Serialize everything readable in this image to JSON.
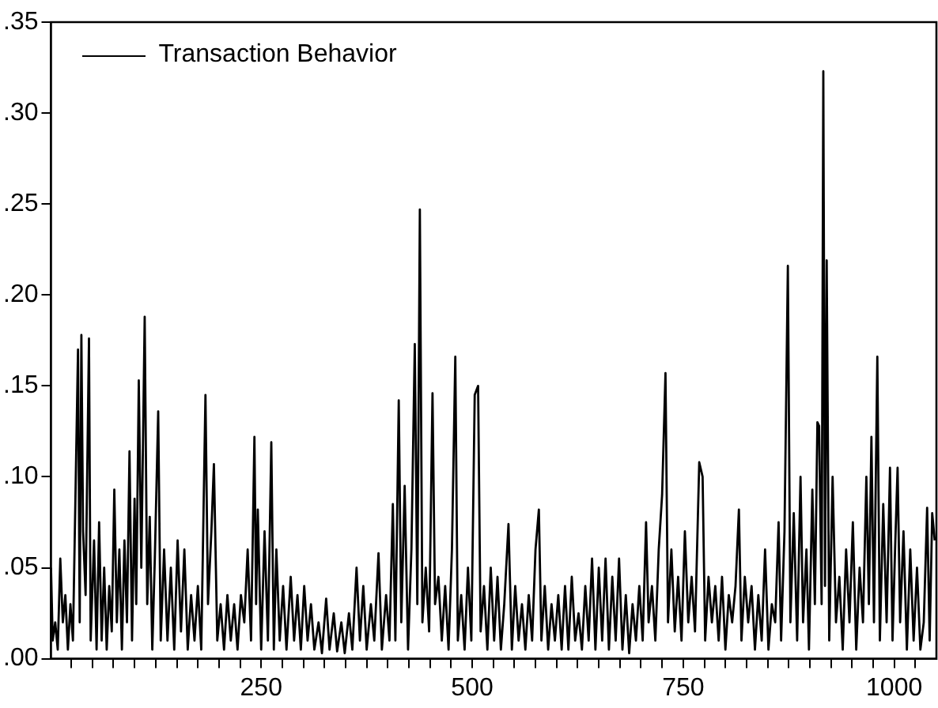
{
  "chart_data": {
    "type": "line",
    "legend": "top left",
    "grid": false,
    "marker": "none",
    "line_style": "solid",
    "xlim": [
      1,
      1050
    ],
    "ylim": [
      0,
      0.35
    ],
    "yticks": [
      {
        "value": 0,
        "label": ".00"
      },
      {
        "value": 0.05,
        "label": ".05"
      },
      {
        "value": 0.1,
        "label": ".10"
      },
      {
        "value": 0.15,
        "label": ".15"
      },
      {
        "value": 0.2,
        "label": ".20"
      },
      {
        "value": 0.25,
        "label": ".25"
      },
      {
        "value": 0.3,
        "label": ".30"
      },
      {
        "value": 0.35,
        "label": ".35"
      }
    ],
    "xticks": [
      {
        "value": 25,
        "label": null
      },
      {
        "value": 50,
        "label": null
      },
      {
        "value": 75,
        "label": null
      },
      {
        "value": 100,
        "label": null
      },
      {
        "value": 125,
        "label": null
      },
      {
        "value": 150,
        "label": null
      },
      {
        "value": 175,
        "label": null
      },
      {
        "value": 200,
        "label": null
      },
      {
        "value": 225,
        "label": null
      },
      250,
      {
        "value": 275,
        "label": null
      },
      {
        "value": 300,
        "label": null
      },
      {
        "value": 325,
        "label": null
      },
      {
        "value": 350,
        "label": null
      },
      {
        "value": 375,
        "label": null
      },
      {
        "value": 400,
        "label": null
      },
      {
        "value": 425,
        "label": null
      },
      {
        "value": 450,
        "label": null
      },
      {
        "value": 475,
        "label": null
      },
      500,
      {
        "value": 525,
        "label": null
      },
      {
        "value": 550,
        "label": null
      },
      {
        "value": 575,
        "label": null
      },
      {
        "value": 600,
        "label": null
      },
      {
        "value": 625,
        "label": null
      },
      {
        "value": 650,
        "label": null
      },
      {
        "value": 675,
        "label": null
      },
      {
        "value": 700,
        "label": null
      },
      {
        "value": 725,
        "label": null
      },
      750,
      {
        "value": 775,
        "label": null
      },
      {
        "value": 800,
        "label": null
      },
      {
        "value": 825,
        "label": null
      },
      {
        "value": 850,
        "label": null
      },
      {
        "value": 875,
        "label": null
      },
      {
        "value": 900,
        "label": null
      },
      {
        "value": 925,
        "label": null
      },
      {
        "value": 950,
        "label": null
      },
      {
        "value": 975,
        "label": null
      },
      1000,
      {
        "value": 1025,
        "label": null
      }
    ],
    "series": [
      {
        "name": "Transaction Behavior",
        "color": "#000000",
        "x": [
          1,
          3,
          6,
          9,
          12,
          15,
          18,
          21,
          24,
          27,
          30,
          33,
          35,
          37,
          39,
          42,
          46,
          48,
          52,
          55,
          58,
          61,
          64,
          67,
          70,
          73,
          76,
          79,
          82,
          85,
          88,
          91,
          94,
          97,
          100,
          102,
          105,
          108,
          112,
          115,
          118,
          121,
          124,
          128,
          131,
          135,
          139,
          143,
          147,
          151,
          155,
          159,
          163,
          167,
          171,
          175,
          179,
          184,
          187,
          191,
          194,
          198,
          202,
          206,
          210,
          214,
          218,
          222,
          226,
          230,
          234,
          238,
          242,
          244,
          246,
          250,
          254,
          258,
          262,
          265,
          268,
          272,
          276,
          280,
          285,
          289,
          293,
          297,
          301,
          305,
          309,
          313,
          318,
          322,
          327,
          331,
          336,
          340,
          345,
          349,
          354,
          358,
          363,
          367,
          371,
          375,
          380,
          384,
          389,
          393,
          398,
          402,
          406,
          409,
          413,
          416,
          420,
          424,
          428,
          432,
          435,
          438,
          441,
          445,
          449,
          453,
          456,
          460,
          464,
          468,
          472,
          476,
          480,
          483,
          487,
          491,
          495,
          499,
          503,
          507,
          510,
          514,
          518,
          522,
          526,
          530,
          534,
          538,
          543,
          547,
          551,
          555,
          559,
          563,
          567,
          571,
          575,
          579,
          582,
          586,
          590,
          594,
          598,
          602,
          606,
          610,
          614,
          618,
          622,
          626,
          630,
          634,
          638,
          642,
          646,
          650,
          654,
          658,
          662,
          666,
          670,
          674,
          678,
          682,
          686,
          690,
          694,
          698,
          702,
          706,
          709,
          713,
          717,
          721,
          725,
          729,
          732,
          736,
          740,
          744,
          748,
          752,
          756,
          760,
          764,
          769,
          773,
          776,
          780,
          784,
          788,
          792,
          796,
          800,
          804,
          808,
          812,
          816,
          819,
          823,
          827,
          831,
          835,
          839,
          843,
          847,
          851,
          855,
          859,
          863,
          866,
          870,
          874,
          877,
          881,
          885,
          889,
          892,
          896,
          899,
          903,
          906,
          909,
          911,
          914,
          916,
          918,
          920,
          923,
          927,
          931,
          935,
          939,
          943,
          947,
          951,
          955,
          959,
          963,
          967,
          970,
          973,
          976,
          980,
          983,
          987,
          991,
          995,
          998,
          1001,
          1004,
          1007,
          1011,
          1015,
          1019,
          1023,
          1027,
          1031,
          1035,
          1039,
          1042,
          1045,
          1048
        ],
        "values": [
          0.05,
          0.01,
          0.02,
          0.005,
          0.055,
          0.02,
          0.035,
          0.005,
          0.03,
          0.01,
          0.09,
          0.17,
          0.02,
          0.178,
          0.07,
          0.035,
          0.176,
          0.01,
          0.065,
          0.005,
          0.075,
          0.01,
          0.05,
          0.005,
          0.04,
          0.015,
          0.093,
          0.02,
          0.06,
          0.005,
          0.065,
          0.02,
          0.114,
          0.01,
          0.088,
          0.03,
          0.153,
          0.05,
          0.188,
          0.03,
          0.078,
          0.005,
          0.055,
          0.136,
          0.01,
          0.06,
          0.01,
          0.05,
          0.005,
          0.065,
          0.015,
          0.06,
          0.005,
          0.035,
          0.01,
          0.04,
          0.005,
          0.145,
          0.03,
          0.07,
          0.107,
          0.01,
          0.03,
          0.005,
          0.035,
          0.01,
          0.03,
          0.005,
          0.035,
          0.02,
          0.06,
          0.01,
          0.122,
          0.03,
          0.082,
          0.005,
          0.07,
          0.01,
          0.119,
          0.005,
          0.06,
          0.01,
          0.04,
          0.005,
          0.045,
          0.01,
          0.035,
          0.005,
          0.04,
          0.01,
          0.03,
          0.005,
          0.02,
          0.003,
          0.033,
          0.005,
          0.025,
          0.004,
          0.02,
          0.003,
          0.025,
          0.005,
          0.05,
          0.01,
          0.04,
          0.005,
          0.03,
          0.01,
          0.058,
          0.005,
          0.035,
          0.01,
          0.085,
          0.01,
          0.142,
          0.02,
          0.095,
          0.005,
          0.06,
          0.173,
          0.03,
          0.247,
          0.02,
          0.05,
          0.015,
          0.146,
          0.03,
          0.045,
          0.01,
          0.04,
          0.005,
          0.06,
          0.166,
          0.01,
          0.035,
          0.005,
          0.05,
          0.01,
          0.145,
          0.15,
          0.015,
          0.04,
          0.005,
          0.05,
          0.01,
          0.045,
          0.005,
          0.03,
          0.074,
          0.005,
          0.04,
          0.01,
          0.03,
          0.005,
          0.035,
          0.01,
          0.06,
          0.082,
          0.01,
          0.04,
          0.005,
          0.03,
          0.01,
          0.035,
          0.005,
          0.04,
          0.005,
          0.045,
          0.01,
          0.025,
          0.005,
          0.04,
          0.01,
          0.055,
          0.005,
          0.05,
          0.01,
          0.055,
          0.005,
          0.045,
          0.01,
          0.055,
          0.005,
          0.035,
          0.003,
          0.03,
          0.01,
          0.04,
          0.01,
          0.075,
          0.02,
          0.04,
          0.01,
          0.06,
          0.09,
          0.157,
          0.02,
          0.06,
          0.015,
          0.045,
          0.01,
          0.07,
          0.02,
          0.045,
          0.015,
          0.108,
          0.1,
          0.01,
          0.045,
          0.02,
          0.04,
          0.01,
          0.045,
          0.005,
          0.035,
          0.02,
          0.04,
          0.082,
          0.01,
          0.045,
          0.02,
          0.04,
          0.005,
          0.035,
          0.01,
          0.06,
          0.005,
          0.03,
          0.02,
          0.075,
          0.01,
          0.07,
          0.216,
          0.02,
          0.08,
          0.01,
          0.1,
          0.02,
          0.06,
          0.005,
          0.093,
          0.03,
          0.13,
          0.128,
          0.03,
          0.323,
          0.04,
          0.219,
          0.01,
          0.1,
          0.02,
          0.045,
          0.005,
          0.06,
          0.02,
          0.075,
          0.005,
          0.05,
          0.02,
          0.1,
          0.03,
          0.122,
          0.02,
          0.166,
          0.01,
          0.085,
          0.02,
          0.105,
          0.01,
          0.06,
          0.105,
          0.02,
          0.07,
          0.005,
          0.06,
          0.01,
          0.05,
          0.005,
          0.02,
          0.083,
          0.01,
          0.08,
          0.065
        ]
      }
    ]
  }
}
